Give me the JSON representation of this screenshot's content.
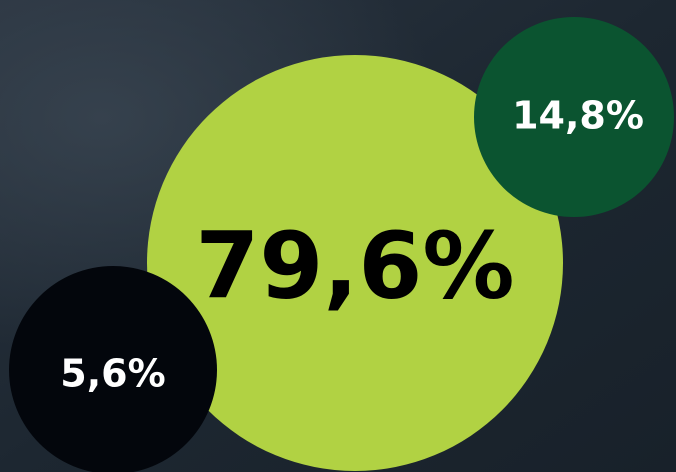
{
  "circles": [
    {
      "label": "79,6%"
    },
    {
      "label": "14,8%"
    },
    {
      "label": "5,6%"
    }
  ]
}
